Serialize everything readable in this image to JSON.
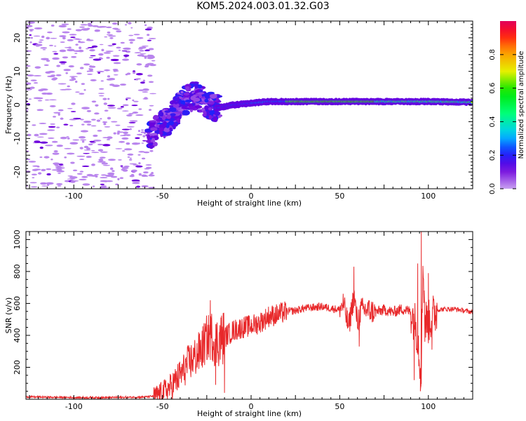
{
  "title": "KOM5.2024.003.01.32.G03",
  "colors": {
    "line": "#e8282a",
    "spectrogram_min": "#c9a6f0",
    "spectrogram_max": "#e0004f"
  },
  "colorbar": {
    "label": "Normalized spectral amplitude",
    "ticks": [
      "0.0",
      "0.2",
      "0.4",
      "0.6",
      "0.8"
    ],
    "range": [
      0,
      1
    ],
    "colormap": "rainbow"
  },
  "chart_data": [
    {
      "type": "heatmap",
      "xlabel": "Height of straight line (km)",
      "ylabel": "Frequency (Hz)",
      "xlim": [
        -127,
        125
      ],
      "ylim": [
        -25,
        25
      ],
      "xticks": [
        "-100",
        "-50",
        "0",
        "50",
        "100"
      ],
      "yticks": [
        "-20",
        "-10",
        "0",
        "10",
        "20"
      ],
      "grid": false,
      "features": {
        "noise_region_x": [
          -127,
          -55
        ],
        "transition_region_x": [
          -58,
          -20
        ],
        "ridge": [
          {
            "x": -57,
            "y": -9
          },
          {
            "x": -50,
            "y": -6
          },
          {
            "x": -45,
            "y": -4
          },
          {
            "x": -40,
            "y": 0
          },
          {
            "x": -35,
            "y": 2
          },
          {
            "x": -30,
            "y": 3
          },
          {
            "x": -25,
            "y": 0
          },
          {
            "x": -20,
            "y": -1
          },
          {
            "x": -10,
            "y": 0
          },
          {
            "x": 0,
            "y": 0.5
          },
          {
            "x": 10,
            "y": 1
          },
          {
            "x": 20,
            "y": 1
          },
          {
            "x": 40,
            "y": 1
          },
          {
            "x": 60,
            "y": 1
          },
          {
            "x": 80,
            "y": 1
          },
          {
            "x": 100,
            "y": 1
          },
          {
            "x": 125,
            "y": 0.8
          }
        ],
        "peak_amplitude_region_x": [
          20,
          70
        ]
      }
    },
    {
      "type": "line",
      "xlabel": "Height of straight line (km)",
      "ylabel": "SNR (v/v)",
      "xlim": [
        -127,
        125
      ],
      "ylim": [
        0,
        1050
      ],
      "xticks": [
        "-100",
        "-50",
        "0",
        "50",
        "100"
      ],
      "yticks": [
        "200",
        "400",
        "600",
        "800",
        "1000"
      ],
      "grid": false,
      "series": [
        {
          "x": [
            -127,
            -110,
            -90,
            -70,
            -60,
            -55,
            -50,
            -45,
            -40,
            -35,
            -30,
            -27,
            -25,
            -22,
            -20,
            -17,
            -15,
            -10,
            -5,
            0,
            5,
            10,
            15,
            20,
            25,
            30,
            35,
            40,
            45,
            50,
            52,
            55,
            58,
            60,
            62,
            65,
            70,
            75,
            80,
            85,
            90,
            92,
            94,
            95,
            96,
            97,
            98,
            100,
            105,
            110,
            115,
            120,
            125
          ],
          "y": [
            15,
            12,
            10,
            12,
            14,
            20,
            40,
            80,
            150,
            230,
            280,
            330,
            380,
            400,
            350,
            380,
            390,
            430,
            450,
            460,
            480,
            520,
            530,
            550,
            555,
            570,
            575,
            580,
            570,
            560,
            600,
            450,
            650,
            480,
            560,
            560,
            545,
            560,
            545,
            565,
            550,
            500,
            400,
            250,
            180,
            900,
            500,
            480,
            560,
            565,
            565,
            555,
            545
          ],
          "spikes": [
            {
              "x": -23,
              "y": 620
            },
            {
              "x": -20,
              "y": 90
            },
            {
              "x": -15,
              "y": 40
            },
            {
              "x": 58,
              "y": 830
            },
            {
              "x": 61,
              "y": 330
            },
            {
              "x": 92,
              "y": 120
            },
            {
              "x": 94,
              "y": 850
            },
            {
              "x": 95.5,
              "y": 50
            },
            {
              "x": 96,
              "y": 1050
            },
            {
              "x": 98,
              "y": 360
            },
            {
              "x": 100,
              "y": 790
            },
            {
              "x": 102,
              "y": 310
            }
          ]
        }
      ]
    }
  ]
}
